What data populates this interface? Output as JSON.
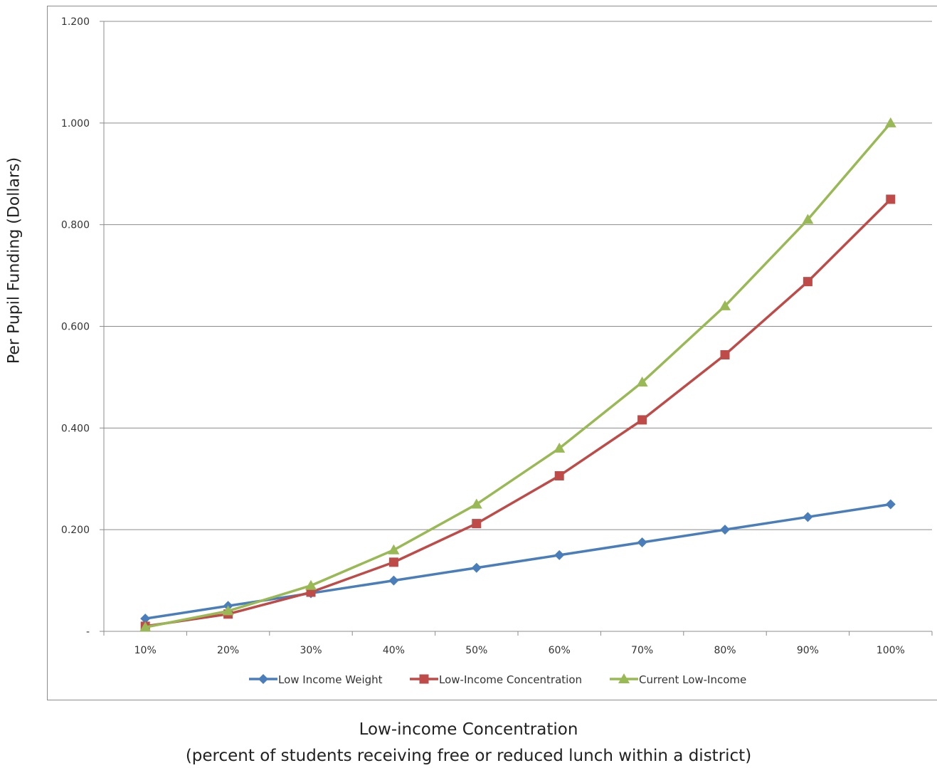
{
  "chart_data": {
    "type": "line",
    "title": "",
    "xlabel": "Low-income Concentration",
    "xlabel_sub": "(percent of students receiving free or reduced lunch within a district)",
    "ylabel": "Per  Pupil Funding (Dollars)",
    "categories": [
      "10%",
      "20%",
      "30%",
      "40%",
      "50%",
      "60%",
      "70%",
      "80%",
      "90%",
      "100%"
    ],
    "y_ticks": [
      {
        "value": 0,
        "label": "-"
      },
      {
        "value": 0.2,
        "label": "0.200"
      },
      {
        "value": 0.4,
        "label": "0.400"
      },
      {
        "value": 0.6,
        "label": "0.600"
      },
      {
        "value": 0.8,
        "label": "0.800"
      },
      {
        "value": 1.0,
        "label": "1.000"
      },
      {
        "value": 1.2,
        "label": "1.200"
      }
    ],
    "ylim": [
      0,
      1.2
    ],
    "grid": true,
    "legend_position": "bottom",
    "series": [
      {
        "name": "Low Income Weight",
        "color": "#4a7ebb",
        "marker": "diamond",
        "values": [
          0.025,
          0.05,
          0.075,
          0.1,
          0.125,
          0.15,
          0.175,
          0.2,
          0.225,
          0.25
        ]
      },
      {
        "name": "Low-Income Concentration",
        "color": "#be4b48",
        "marker": "square",
        "values": [
          0.01,
          0.034,
          0.077,
          0.136,
          0.212,
          0.306,
          0.416,
          0.544,
          0.688,
          0.85
        ]
      },
      {
        "name": "Current Low-Income",
        "color": "#98b954",
        "marker": "triangle",
        "values": [
          0.008,
          0.04,
          0.09,
          0.16,
          0.25,
          0.36,
          0.49,
          0.64,
          0.81,
          1.0
        ]
      }
    ]
  }
}
